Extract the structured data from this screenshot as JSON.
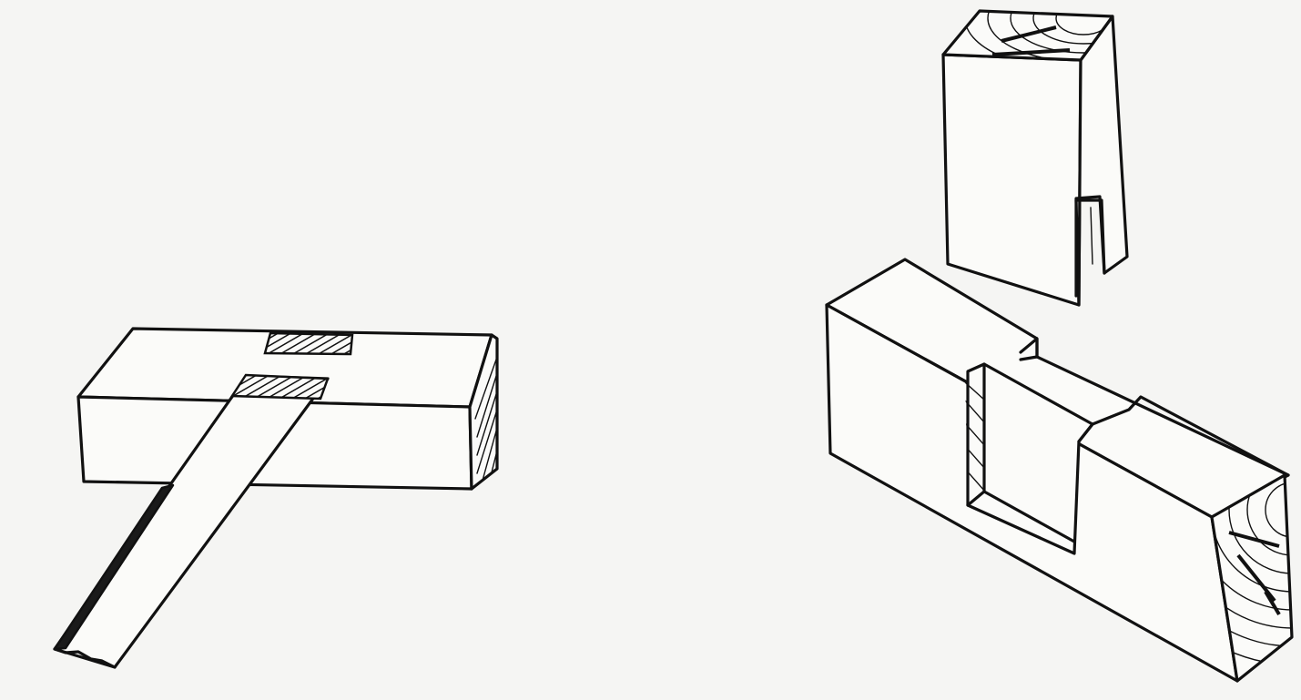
{
  "figures": [
    {
      "id": "left",
      "icon": "halving-lap-joint-icon"
    },
    {
      "id": "right",
      "icon": "mortise-and-tenon-joint-icon"
    }
  ]
}
